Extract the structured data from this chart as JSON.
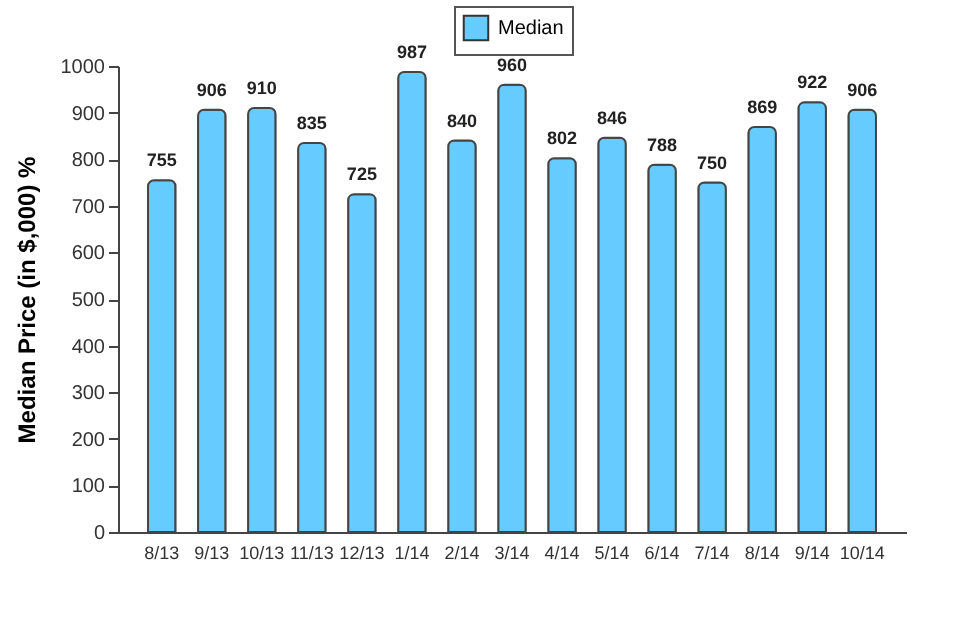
{
  "chart_data": {
    "type": "bar",
    "ylabel": "Median Price (in $,000) %",
    "categories": [
      "8/13",
      "9/13",
      "10/13",
      "11/13",
      "12/13",
      "1/14",
      "2/14",
      "3/14",
      "4/14",
      "5/14",
      "6/14",
      "7/14",
      "8/14",
      "9/14",
      "10/14"
    ],
    "series": [
      {
        "name": "Median",
        "color": "#66ccff",
        "values": [
          755,
          906,
          910,
          835,
          725,
          987,
          840,
          960,
          802,
          846,
          788,
          750,
          869,
          922,
          906
        ]
      }
    ],
    "ylim": [
      0,
      1000
    ],
    "yticks": [
      0,
      100,
      200,
      300,
      400,
      500,
      600,
      700,
      800,
      900,
      1000
    ],
    "data_labels": true,
    "legend": "top",
    "grid": false
  }
}
